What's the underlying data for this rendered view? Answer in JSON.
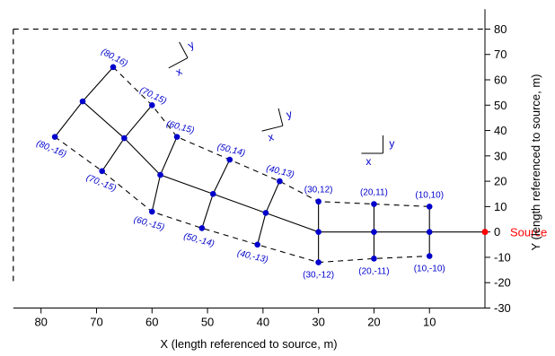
{
  "chart_data": {
    "type": "scatter",
    "xlabel": "X (length referenced to source, m)",
    "ylabel": "Y (length referenced to source, m)",
    "xlim": [
      85,
      0
    ],
    "ylim": [
      -30,
      85
    ],
    "x_ticks": [
      80,
      70,
      60,
      50,
      40,
      30,
      20,
      10
    ],
    "y_ticks": [
      80,
      70,
      60,
      50,
      40,
      30,
      20,
      10,
      0,
      -10,
      -20,
      -30
    ],
    "grid": false,
    "source": {
      "label": "Source",
      "x": 0,
      "y": 0,
      "color": "#ff0000"
    },
    "points_color": "#0000cc",
    "points": [
      {
        "id": "p80_16",
        "label": "(80,16)",
        "x": 67,
        "y": 65
      },
      {
        "id": "p70_15",
        "label": "(70,15)",
        "x": 60,
        "y": 50
      },
      {
        "id": "p60_15",
        "label": "(60,15)",
        "x": 55.5,
        "y": 37.5
      },
      {
        "id": "p50_14",
        "label": "(50,14)",
        "x": 46,
        "y": 28.5
      },
      {
        "id": "p40_13",
        "label": "(40,13)",
        "x": 37,
        "y": 20
      },
      {
        "id": "p30_12",
        "label": "(30,12)",
        "x": 30,
        "y": 12
      },
      {
        "id": "p20_11",
        "label": "(20,11)",
        "x": 20,
        "y": 11
      },
      {
        "id": "p10_10",
        "label": "(10,10)",
        "x": 10,
        "y": 10
      },
      {
        "id": "p80_0",
        "label": "",
        "x": 72.5,
        "y": 51.5
      },
      {
        "id": "p70_0",
        "label": "",
        "x": 65,
        "y": 37
      },
      {
        "id": "p60_0",
        "label": "",
        "x": 58.5,
        "y": 22.5
      },
      {
        "id": "p50_0",
        "label": "",
        "x": 49,
        "y": 15
      },
      {
        "id": "p40_0",
        "label": "",
        "x": 39.5,
        "y": 7.5
      },
      {
        "id": "p30_0",
        "label": "",
        "x": 30,
        "y": 0
      },
      {
        "id": "p20_0",
        "label": "",
        "x": 20,
        "y": 0
      },
      {
        "id": "p10_0",
        "label": "",
        "x": 10,
        "y": 0
      },
      {
        "id": "p80_m16",
        "label": "(80,-16)",
        "x": 77.5,
        "y": 37.5
      },
      {
        "id": "p70_m15",
        "label": "(70,-15)",
        "x": 69,
        "y": 24
      },
      {
        "id": "p60_m15",
        "label": "(60,-15)",
        "x": 60,
        "y": 8
      },
      {
        "id": "p50_m14",
        "label": "(50,-14)",
        "x": 51,
        "y": 1.5
      },
      {
        "id": "p40_m13",
        "label": "(40,-13)",
        "x": 41,
        "y": -5
      },
      {
        "id": "p30_m12",
        "label": "(30,-12)",
        "x": 30,
        "y": -12
      },
      {
        "id": "p20_m11",
        "label": "(20,-11)",
        "x": 20,
        "y": -10.5
      },
      {
        "id": "p10_m10",
        "label": "(10,-10)",
        "x": 10,
        "y": -9.5
      }
    ],
    "solid_lines": [
      [
        "p80_0",
        "p70_0",
        "p60_0",
        "p50_0",
        "p40_0",
        "p30_0",
        "p20_0",
        "p10_0",
        "SRC"
      ],
      [
        "p80_16",
        "p80_0",
        "p80_m16"
      ],
      [
        "p70_15",
        "p70_0",
        "p70_m15"
      ],
      [
        "p60_15",
        "p60_0",
        "p60_m15"
      ],
      [
        "p50_14",
        "p50_0",
        "p50_m14"
      ],
      [
        "p40_13",
        "p40_0",
        "p40_m13"
      ],
      [
        "p30_12",
        "p30_0",
        "p30_m12"
      ],
      [
        "p20_11",
        "p20_0",
        "p20_m11"
      ],
      [
        "p10_10",
        "p10_0",
        "p10_m10"
      ]
    ],
    "dashed_lines": [
      [
        "p80_16",
        "p70_15",
        "p60_15",
        "p50_14",
        "p40_13",
        "p30_12",
        "p20_11",
        "p10_10"
      ],
      [
        "p80_m16",
        "p70_m15",
        "p60_m15",
        "p50_m14",
        "p40_m13",
        "p30_m12",
        "p20_m11",
        "p10_m10"
      ]
    ],
    "boundary_dashed": [
      {
        "type": "top",
        "y": 80,
        "x_from": 85,
        "x_to": 0
      },
      {
        "type": "left",
        "x": 85,
        "y_from": 80,
        "y_to": -20
      }
    ],
    "orientation_markers": [
      {
        "id": "m1",
        "x": 55,
        "y": 67,
        "angle": -28,
        "x_label": "x",
        "y_label": "y"
      },
      {
        "id": "m2",
        "x": 38,
        "y": 41,
        "angle": -14,
        "x_label": "x",
        "y_label": "y"
      },
      {
        "id": "m3",
        "x": 20,
        "y": 31,
        "angle": 0,
        "x_label": "x",
        "y_label": "y"
      }
    ]
  }
}
